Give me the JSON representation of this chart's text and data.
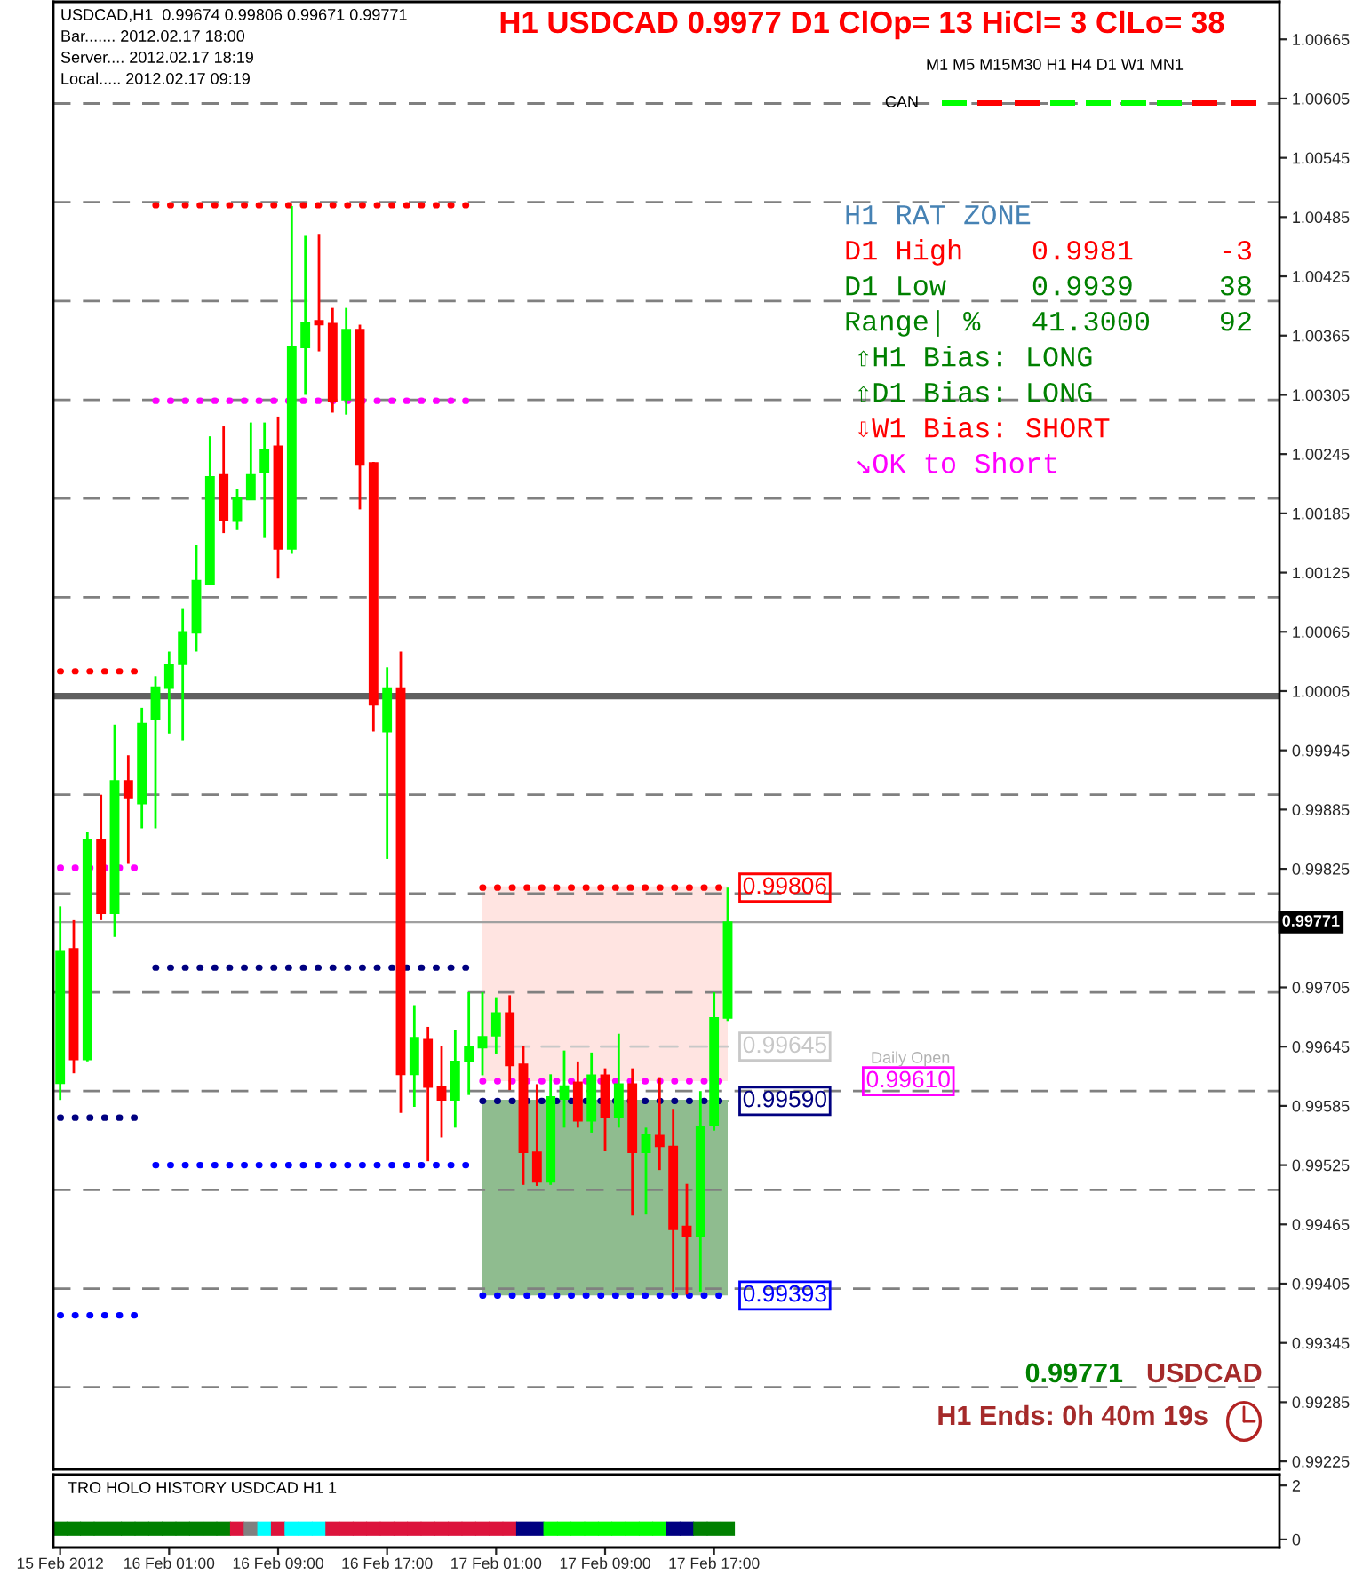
{
  "chart_data": [
    {
      "type": "candlestick",
      "title": "H1 USDCAD 0.9977 D1 ClOp= 13 HiCl= 3 ClLo= 38",
      "x": [
        "2012-02-15T17:00",
        "2012-02-15T18:00",
        "2012-02-15T19:00",
        "2012-02-15T20:00",
        "2012-02-15T21:00",
        "2012-02-15T22:00",
        "2012-02-15T23:00",
        "2012-02-16T00:00",
        "2012-02-16T01:00",
        "2012-02-16T02:00",
        "2012-02-16T03:00",
        "2012-02-16T04:00",
        "2012-02-16T05:00",
        "2012-02-16T06:00",
        "2012-02-16T07:00",
        "2012-02-16T08:00",
        "2012-02-16T09:00",
        "2012-02-16T10:00",
        "2012-02-16T11:00",
        "2012-02-16T12:00",
        "2012-02-16T13:00",
        "2012-02-16T14:00",
        "2012-02-16T15:00",
        "2012-02-16T16:00",
        "2012-02-16T17:00",
        "2012-02-16T18:00",
        "2012-02-16T19:00",
        "2012-02-16T20:00",
        "2012-02-16T21:00",
        "2012-02-16T22:00",
        "2012-02-16T23:00",
        "2012-02-17T00:00",
        "2012-02-17T01:00",
        "2012-02-17T02:00",
        "2012-02-17T03:00",
        "2012-02-17T04:00",
        "2012-02-17T05:00",
        "2012-02-17T06:00",
        "2012-02-17T07:00",
        "2012-02-17T08:00",
        "2012-02-17T09:00",
        "2012-02-17T10:00",
        "2012-02-17T11:00",
        "2012-02-17T12:00",
        "2012-02-17T13:00",
        "2012-02-17T14:00",
        "2012-02-17T15:00",
        "2012-02-17T16:00",
        "2012-02-17T17:00",
        "2012-02-17T18:00"
      ],
      "ohlc": [
        [
          0.99608,
          0.99787,
          0.99591,
          0.99742
        ],
        [
          0.99744,
          0.99773,
          0.99618,
          0.99632
        ],
        [
          0.99632,
          0.99862,
          0.9963,
          0.99855
        ],
        [
          0.99855,
          0.999,
          0.99773,
          0.9978
        ],
        [
          0.9978,
          0.99971,
          0.99756,
          0.99914
        ],
        [
          0.99914,
          0.9994,
          0.9983,
          0.99897
        ],
        [
          0.99891,
          0.99988,
          0.99866,
          0.99972
        ],
        [
          0.99976,
          1.0002,
          0.99866,
          1.00009
        ],
        [
          1.00008,
          1.00045,
          0.99962,
          1.00032
        ],
        [
          1.00032,
          1.00089,
          0.99955,
          1.00065
        ],
        [
          1.00064,
          1.00153,
          1.00045,
          1.00117
        ],
        [
          1.00113,
          1.00263,
          1.00113,
          1.00222
        ],
        [
          1.00224,
          1.00273,
          1.00165,
          1.00178
        ],
        [
          1.00177,
          1.0021,
          1.00168,
          1.00201
        ],
        [
          1.00199,
          1.00277,
          1.00199,
          1.00224
        ],
        [
          1.00227,
          1.00277,
          1.0016,
          1.00249
        ],
        [
          1.00253,
          1.00283,
          1.00119,
          1.00149
        ],
        [
          1.00149,
          1.00496,
          1.00144,
          1.00354
        ],
        [
          1.00353,
          1.00466,
          1.00305,
          1.00378
        ],
        [
          1.0038,
          1.00468,
          1.00349,
          1.00376
        ],
        [
          1.00377,
          1.00393,
          1.00287,
          1.00299
        ],
        [
          1.003,
          1.00393,
          1.00285,
          1.00371
        ],
        [
          1.00371,
          1.00376,
          1.00189,
          1.00234
        ],
        [
          1.00236,
          1.00237,
          0.99964,
          0.99991
        ],
        [
          0.99964,
          1.00029,
          0.99835,
          1.00008
        ],
        [
          1.00008,
          1.00045,
          0.99578,
          0.99617
        ],
        [
          0.99617,
          0.99687,
          0.99584,
          0.99654
        ],
        [
          0.99652,
          0.99665,
          0.99529,
          0.99604
        ],
        [
          0.99604,
          0.99646,
          0.99553,
          0.99591
        ],
        [
          0.99591,
          0.99662,
          0.99563,
          0.9963
        ],
        [
          0.9963,
          0.997,
          0.99596,
          0.99645
        ],
        [
          0.99644,
          0.997,
          0.99616,
          0.99655
        ],
        [
          0.99656,
          0.99695,
          0.99638,
          0.99679
        ],
        [
          0.99679,
          0.99697,
          0.99601,
          0.99626
        ],
        [
          0.99627,
          0.99646,
          0.99505,
          0.99538
        ],
        [
          0.99538,
          0.99607,
          0.99504,
          0.99508
        ],
        [
          0.99508,
          0.99617,
          0.99505,
          0.99594
        ],
        [
          0.99592,
          0.99641,
          0.99563,
          0.99605
        ],
        [
          0.99609,
          0.9963,
          0.99563,
          0.9957
        ],
        [
          0.9957,
          0.99639,
          0.99558,
          0.99616
        ],
        [
          0.99616,
          0.99623,
          0.99539,
          0.99574
        ],
        [
          0.99573,
          0.99658,
          0.99563,
          0.99607
        ],
        [
          0.99607,
          0.99623,
          0.99474,
          0.99538
        ],
        [
          0.99538,
          0.99563,
          0.99475,
          0.99556
        ],
        [
          0.99555,
          0.99614,
          0.9952,
          0.99544
        ],
        [
          0.99544,
          0.99582,
          0.99397,
          0.9946
        ],
        [
          0.99463,
          0.99506,
          0.99394,
          0.99453
        ],
        [
          0.99453,
          0.996,
          0.99397,
          0.99564
        ],
        [
          0.99565,
          0.997,
          0.9956,
          0.99674
        ],
        [
          0.99674,
          0.99806,
          0.99671,
          0.99771
        ]
      ],
      "colors": [
        "#00ff00",
        "#ff0000",
        "#00ff00",
        "#ff0000",
        "#00ff00",
        "#ff0000",
        "#00ff00",
        "#00ff00",
        "#00ff00",
        "#00ff00",
        "#00ff00",
        "#00ff00",
        "#ff0000",
        "#00ff00",
        "#00ff00",
        "#00ff00",
        "#ff0000",
        "#00ff00",
        "#00ff00",
        "#ff0000",
        "#ff0000",
        "#00ff00",
        "#ff0000",
        "#ff0000",
        "#00ff00",
        "#ff0000",
        "#00ff00",
        "#ff0000",
        "#ff0000",
        "#00ff00",
        "#00ff00",
        "#00ff00",
        "#00ff00",
        "#ff0000",
        "#ff0000",
        "#ff0000",
        "#00ff00",
        "#00ff00",
        "#ff0000",
        "#00ff00",
        "#ff0000",
        "#00ff00",
        "#ff0000",
        "#00ff00",
        "#ff0000",
        "#ff0000",
        "#ff0000",
        "#00ff00",
        "#00ff00",
        "#00ff00"
      ],
      "series": [
        {
          "type": "line",
          "line_style": "solid",
          "color": "#ffe4e1",
          "x": [
            "2012-02-17T00:00",
            "2012-02-17T18:00"
          ],
          "values": [
            0.99806,
            0.99806
          ],
          "lower": [
            0.9961,
            0.9961
          ],
          "upper": [
            0.99806,
            0.99806
          ]
        },
        {
          "type": "line",
          "line_style": "solid",
          "color": "#8fbc8f",
          "x": [
            "2012-02-17T00:00",
            "2012-02-17T18:00"
          ],
          "values": [
            0.9959,
            0.9959
          ],
          "lower": [
            0.99393,
            0.99393
          ],
          "upper": [
            0.9959,
            0.9959
          ]
        },
        {
          "type": "line",
          "line_style": "dotted",
          "color": "#ff0000",
          "x": [
            "2012-02-15T17:00",
            "2012-02-15T23:00"
          ],
          "values": [
            1.00025,
            1.00025
          ]
        },
        {
          "type": "line",
          "line_style": "dotted",
          "color": "#ff00ff",
          "x": [
            "2012-02-15T17:00",
            "2012-02-15T23:00"
          ],
          "values": [
            0.99826,
            0.99826
          ]
        },
        {
          "type": "line",
          "line_style": "dotted",
          "color": "#000080",
          "x": [
            "2012-02-15T17:00",
            "2012-02-15T23:00"
          ],
          "values": [
            0.99573,
            0.99573
          ]
        },
        {
          "type": "line",
          "line_style": "dotted",
          "color": "#0000ff",
          "x": [
            "2012-02-15T17:00",
            "2012-02-15T23:00"
          ],
          "values": [
            0.99373,
            0.99373
          ]
        },
        {
          "type": "line",
          "line_style": "dotted",
          "color": "#ff0000",
          "x": [
            "2012-02-16T00:00",
            "2012-02-16T23:00"
          ],
          "values": [
            1.00497,
            1.00497
          ]
        },
        {
          "type": "line",
          "line_style": "dotted",
          "color": "#ff00ff",
          "x": [
            "2012-02-16T00:00",
            "2012-02-16T23:00"
          ],
          "values": [
            1.00299,
            1.00299
          ]
        },
        {
          "type": "line",
          "line_style": "dotted",
          "color": "#000080",
          "x": [
            "2012-02-16T00:00",
            "2012-02-16T23:00"
          ],
          "values": [
            0.99725,
            0.99725
          ]
        },
        {
          "type": "line",
          "line_style": "dotted",
          "color": "#0000ff",
          "x": [
            "2012-02-16T00:00",
            "2012-02-16T23:00"
          ],
          "values": [
            0.99525,
            0.99525
          ]
        },
        {
          "type": "line",
          "line_style": "dashed",
          "color": "#c8c8c8",
          "name": "0.99645",
          "x": [
            "2012-02-17T00:00",
            "2012-02-17T18:00"
          ],
          "values": [
            0.99645,
            0.99645
          ]
        },
        {
          "type": "line",
          "line_style": "dotted",
          "color": "#ff0000",
          "name": "0.99806",
          "x": [
            "2012-02-17T00:00",
            "2012-02-17T18:00"
          ],
          "values": [
            0.99806,
            0.99806
          ]
        },
        {
          "type": "line",
          "line_style": "dotted",
          "color": "#ff00ff",
          "name": "0.99610",
          "x": [
            "2012-02-17T00:00",
            "2012-02-17T18:00"
          ],
          "values": [
            0.9961,
            0.9961
          ]
        },
        {
          "type": "line",
          "line_style": "dotted",
          "color": "#000080",
          "name": "0.99590",
          "x": [
            "2012-02-17T00:00",
            "2012-02-17T18:00"
          ],
          "values": [
            0.9959,
            0.9959
          ]
        },
        {
          "type": "line",
          "line_style": "dotted",
          "color": "#0000ff",
          "name": "0.99393",
          "x": [
            "2012-02-17T00:00",
            "2012-02-17T18:00"
          ],
          "values": [
            0.99393,
            0.99393
          ]
        }
      ],
      "ref_lines": [
        {
          "axis": "y",
          "value": 1.006,
          "color": "#808080",
          "line_style": "dashed"
        },
        {
          "axis": "y",
          "value": 1.005,
          "color": "#808080",
          "line_style": "dashed"
        },
        {
          "axis": "y",
          "value": 1.004,
          "color": "#808080",
          "line_style": "dashed"
        },
        {
          "axis": "y",
          "value": 1.003,
          "color": "#808080",
          "line_style": "dashed"
        },
        {
          "axis": "y",
          "value": 1.002,
          "color": "#808080",
          "line_style": "dashed"
        },
        {
          "axis": "y",
          "value": 1.001,
          "color": "#808080",
          "line_style": "dashed"
        },
        {
          "axis": "y",
          "value": 1.0,
          "color": "#606060",
          "line_style": "solid"
        },
        {
          "axis": "y",
          "value": 0.999,
          "color": "#808080",
          "line_style": "dashed"
        },
        {
          "axis": "y",
          "value": 0.998,
          "color": "#808080",
          "line_style": "dashed"
        },
        {
          "axis": "y",
          "value": 0.997,
          "color": "#808080",
          "line_style": "dashed"
        },
        {
          "axis": "y",
          "value": 0.996,
          "color": "#808080",
          "line_style": "dashed"
        },
        {
          "axis": "y",
          "value": 0.995,
          "color": "#808080",
          "line_style": "dashed"
        },
        {
          "axis": "y",
          "value": 0.994,
          "color": "#808080",
          "line_style": "dashed"
        },
        {
          "axis": "y",
          "value": 0.993,
          "color": "#808080",
          "line_style": "dashed"
        },
        {
          "axis": "y",
          "value": 0.99771,
          "color": "#a0a0a0",
          "line_style": "solid",
          "label": "0.99771"
        }
      ],
      "annotations": [
        "USDCAD,H1  0.99674 0.99806 0.99671 0.99771",
        "Bar....... 2012.02.17 18:00",
        "Server.... 2012.02.17 18:19",
        "Local..... 2012.02.17 09:19",
        "M1 M5 M15M30 H1 H4 D1 W1 MN1",
        "CAN",
        "H1 RAT ZONE",
        "D1 High    0.9981     -3",
        "D1 Low     0.9939     38",
        "Range| %   41.3000    92",
        "⇧H1 Bias: LONG",
        "⇧D1 Bias: LONG",
        "⇩W1 Bias: SHORT",
        "↘OK to Short",
        "Daily Open",
        "0.99771",
        "USDCAD",
        "H1 Ends: 0h 40m 19s"
      ],
      "xlim": [
        "2012-02-15T16:30",
        "2012-02-19T10:30"
      ],
      "ylim": [
        0.99217,
        1.00703
      ],
      "yticks": [
        1.00665,
        1.00605,
        1.00545,
        1.00485,
        1.00425,
        1.00365,
        1.00305,
        1.00245,
        1.00185,
        1.00125,
        1.00065,
        1.00005,
        0.99945,
        0.99885,
        0.99825,
        0.99705,
        0.99645,
        0.99585,
        0.99525,
        0.99465,
        0.99405,
        0.99345,
        0.99285,
        0.99225
      ],
      "tick_labels": "y",
      "legend": "right"
    },
    {
      "type": "scatter",
      "marker": "square",
      "x": [
        "2012-02-15T17:00",
        "2012-02-15T18:00",
        "2012-02-15T19:00",
        "2012-02-15T20:00",
        "2012-02-15T21:00",
        "2012-02-15T22:00",
        "2012-02-15T23:00",
        "2012-02-16T00:00",
        "2012-02-16T01:00",
        "2012-02-16T02:00",
        "2012-02-16T03:00",
        "2012-02-16T04:00",
        "2012-02-16T05:00",
        "2012-02-16T06:00",
        "2012-02-16T07:00",
        "2012-02-16T08:00",
        "2012-02-16T09:00",
        "2012-02-16T10:00",
        "2012-02-16T11:00",
        "2012-02-16T12:00",
        "2012-02-16T13:00",
        "2012-02-16T14:00",
        "2012-02-16T15:00",
        "2012-02-16T16:00",
        "2012-02-16T17:00",
        "2012-02-16T18:00",
        "2012-02-16T19:00",
        "2012-02-16T20:00",
        "2012-02-16T21:00",
        "2012-02-16T22:00",
        "2012-02-16T23:00",
        "2012-02-17T00:00",
        "2012-02-17T01:00",
        "2012-02-17T02:00",
        "2012-02-17T03:00",
        "2012-02-17T04:00",
        "2012-02-17T05:00",
        "2012-02-17T06:00",
        "2012-02-17T07:00",
        "2012-02-17T08:00",
        "2012-02-17T09:00",
        "2012-02-17T10:00",
        "2012-02-17T11:00",
        "2012-02-17T12:00",
        "2012-02-17T13:00",
        "2012-02-17T14:00",
        "2012-02-17T15:00",
        "2012-02-17T16:00",
        "2012-02-17T17:00",
        "2012-02-17T18:00"
      ],
      "values": [
        0.4,
        0.4,
        0.4,
        0.4,
        0.4,
        0.4,
        0.4,
        0.4,
        0.4,
        0.4,
        0.4,
        0.4,
        0.4,
        0.4,
        0.4,
        0.4,
        0.4,
        0.4,
        0.4,
        0.4,
        0.4,
        0.4,
        0.4,
        0.4,
        0.4,
        0.4,
        0.4,
        0.4,
        0.4,
        0.4,
        0.4,
        0.4,
        0.4,
        0.4,
        0.4,
        0.4,
        0.4,
        0.4,
        0.4,
        0.4,
        0.4,
        0.4,
        0.4,
        0.4,
        0.4,
        0.4,
        0.4,
        0.4,
        0.4,
        0.4
      ],
      "colors": [
        "#008000",
        "#008000",
        "#008000",
        "#008000",
        "#008000",
        "#008000",
        "#008000",
        "#008000",
        "#008000",
        "#008000",
        "#008000",
        "#008000",
        "#008000",
        "#dc143c",
        "#808080",
        "#00ffff",
        "#dc143c",
        "#00ffff",
        "#00ffff",
        "#00ffff",
        "#dc143c",
        "#dc143c",
        "#dc143c",
        "#dc143c",
        "#dc143c",
        "#dc143c",
        "#dc143c",
        "#dc143c",
        "#dc143c",
        "#dc143c",
        "#dc143c",
        "#dc143c",
        "#dc143c",
        "#dc143c",
        "#000080",
        "#000080",
        "#00ff00",
        "#00ff00",
        "#00ff00",
        "#00ff00",
        "#00ff00",
        "#00ff00",
        "#00ff00",
        "#00ff00",
        "#00ff00",
        "#000080",
        "#000080",
        "#008000",
        "#008000",
        "#008000"
      ],
      "annotations": [
        "TRO HOLO HISTORY USDCAD H1 1"
      ],
      "xlim": [
        "2012-02-15T16:30",
        "2012-02-19T10:30"
      ],
      "xticks": [
        {
          "value": "2012-02-15T17:00",
          "label": "15 Feb 2012"
        },
        {
          "value": "2012-02-16T01:00",
          "label": "16 Feb 01:00"
        },
        {
          "value": "2012-02-16T09:00",
          "label": "16 Feb 09:00"
        },
        {
          "value": "2012-02-16T17:00",
          "label": "16 Feb 17:00"
        },
        {
          "value": "2012-02-17T01:00",
          "label": "17 Feb 01:00"
        },
        {
          "value": "2012-02-17T09:00",
          "label": "17 Feb 09:00"
        },
        {
          "value": "2012-02-17T17:00",
          "label": "17 Feb 17:00"
        }
      ],
      "ylim": [
        -0.3,
        2.4
      ],
      "yticks": [
        0,
        2
      ]
    }
  ]
}
